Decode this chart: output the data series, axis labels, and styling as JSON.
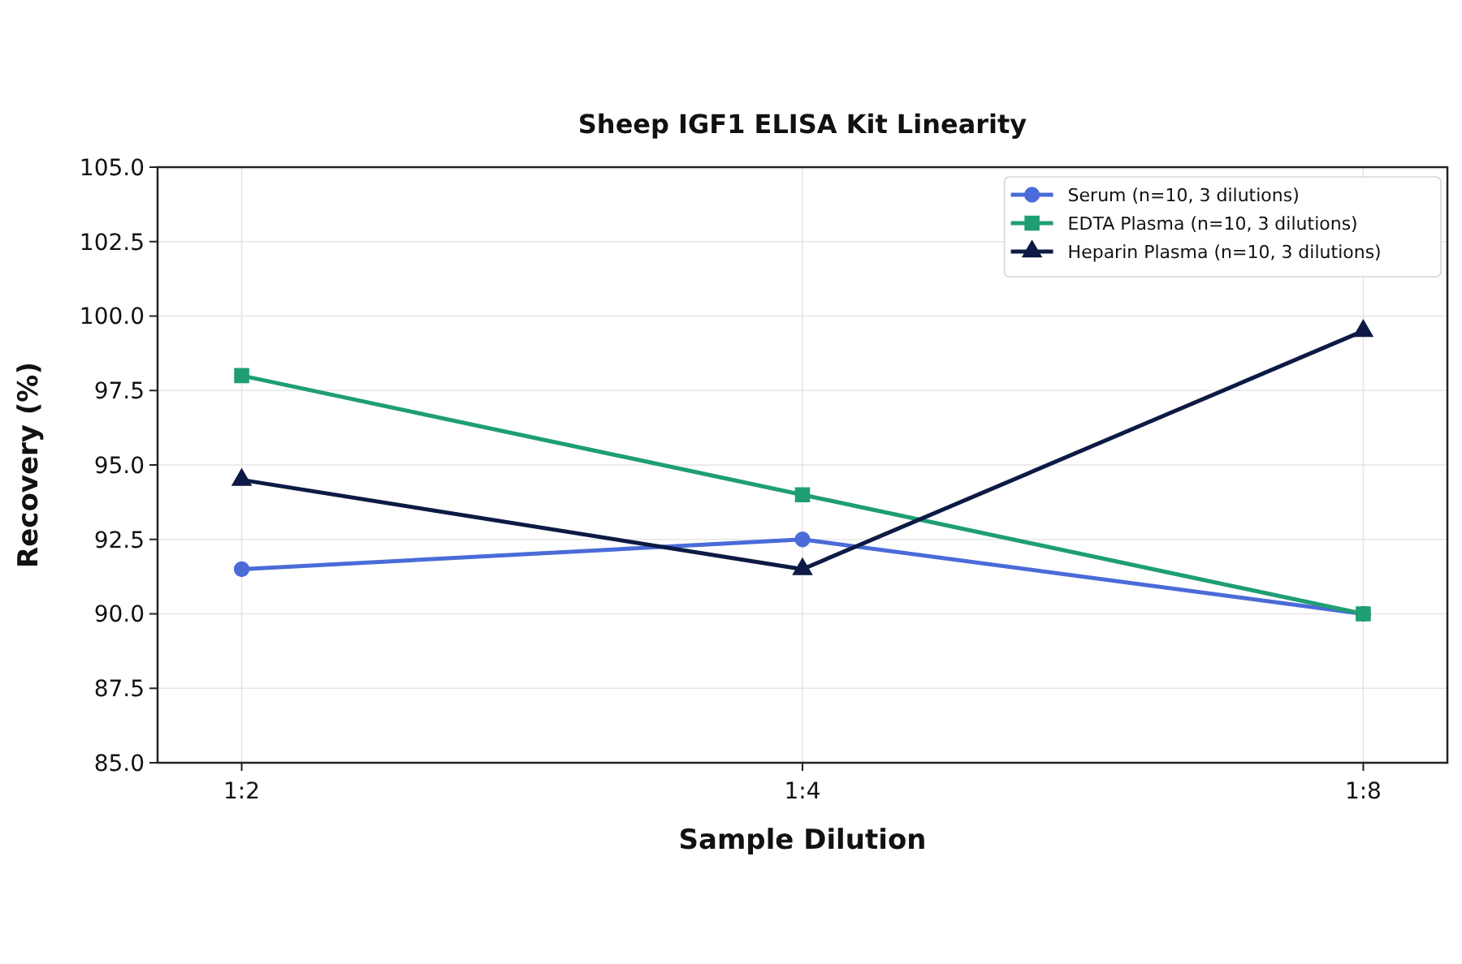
{
  "chart_data": {
    "type": "line",
    "title": "Sheep IGF1 ELISA Kit Linearity",
    "xlabel": "Sample Dilution",
    "ylabel": "Recovery (%)",
    "categories": [
      "1:2",
      "1:4",
      "1:8"
    ],
    "series": [
      {
        "name": "Serum (n=10, 3 dilutions)",
        "color": "#4a6bd8",
        "marker": "circle",
        "values": [
          91.5,
          92.5,
          90.0
        ]
      },
      {
        "name": "EDTA Plasma (n=10, 3 dilutions)",
        "color": "#1f9e74",
        "marker": "square",
        "values": [
          98.0,
          94.0,
          90.0
        ]
      },
      {
        "name": "Heparin Plasma (n=10, 3 dilutions)",
        "color": "#0c1a45",
        "marker": "triangle",
        "values": [
          94.5,
          91.5,
          99.5
        ]
      }
    ],
    "ylim": [
      85,
      105
    ],
    "yticks": [
      {
        "value": 85,
        "label": "85.0"
      },
      {
        "value": 87.5,
        "label": "87.5"
      },
      {
        "value": 90,
        "label": "90.0"
      },
      {
        "value": 92.5,
        "label": "92.5"
      },
      {
        "value": 95,
        "label": "95.0"
      },
      {
        "value": 97.5,
        "label": "97.5"
      },
      {
        "value": 100,
        "label": "100.0"
      },
      {
        "value": 102.5,
        "label": "102.5"
      },
      {
        "value": 105,
        "label": "105.0"
      }
    ],
    "grid": true,
    "legend": "top right",
    "line_style": "solid"
  }
}
